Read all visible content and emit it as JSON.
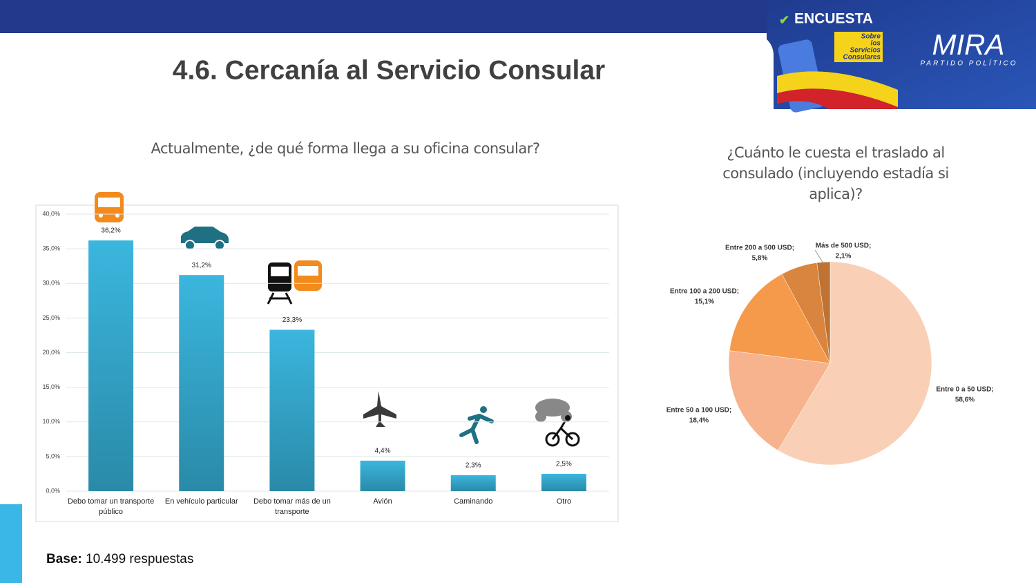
{
  "page": {
    "title": "4.6. Cercanía al Servicio Consular",
    "base_label": "Base:",
    "base_value": "10.499 respuestas",
    "logo": {
      "survey": "ENCUESTA",
      "survey_topic": [
        "Sobre",
        "los",
        "Servicios",
        "Consulares"
      ],
      "brand": "MIRA",
      "brand_sub": "PARTIDO POLÍTICO"
    }
  },
  "chart_data": [
    {
      "type": "bar",
      "title": "Actualmente, ¿de qué forma llega a su oficina consular?",
      "categories": [
        "Debo tomar un transporte público",
        "En vehículo particular",
        "Debo tomar más de un transporte",
        "Avión",
        "Caminando",
        "Otro"
      ],
      "values": [
        36.2,
        31.2,
        23.3,
        4.4,
        2.3,
        2.5
      ],
      "value_labels": [
        "36,2%",
        "31,2%",
        "23,3%",
        "4,4%",
        "2,3%",
        "2,5%"
      ],
      "color": "#35acd4",
      "ylim": [
        0,
        40
      ],
      "yticks": [
        {
          "value": 0,
          "label": "0,0%"
        },
        {
          "value": 5,
          "label": "5,0%"
        },
        {
          "value": 10,
          "label": "10,0%"
        },
        {
          "value": 15,
          "label": "15,0%"
        },
        {
          "value": 20,
          "label": "20,0%"
        },
        {
          "value": 25,
          "label": "25,0%"
        },
        {
          "value": 30,
          "label": "30,0%"
        },
        {
          "value": 35,
          "label": "35,0%"
        },
        {
          "value": 40,
          "label": "40,0%"
        }
      ],
      "grid": true
    },
    {
      "type": "pie",
      "title": "¿Cuánto le cuesta el traslado al consulado (incluyendo estadía si aplica)?",
      "categories": [
        "Entre 0 a 50 USD;",
        "Entre 50 a 100 USD;",
        "Entre 100 a 200 USD;",
        "Entre 200 a 500 USD;",
        "Más de 500 USD;"
      ],
      "values": [
        58.6,
        18.4,
        15.1,
        5.8,
        2.1
      ],
      "value_labels": [
        "58,6%",
        "18,4%",
        "15,1%",
        "5,8%",
        "2,1%"
      ],
      "colors": [
        "#f9d0b5",
        "#f7b38d",
        "#f59a4a",
        "#d9853f",
        "#bf7232"
      ]
    }
  ]
}
